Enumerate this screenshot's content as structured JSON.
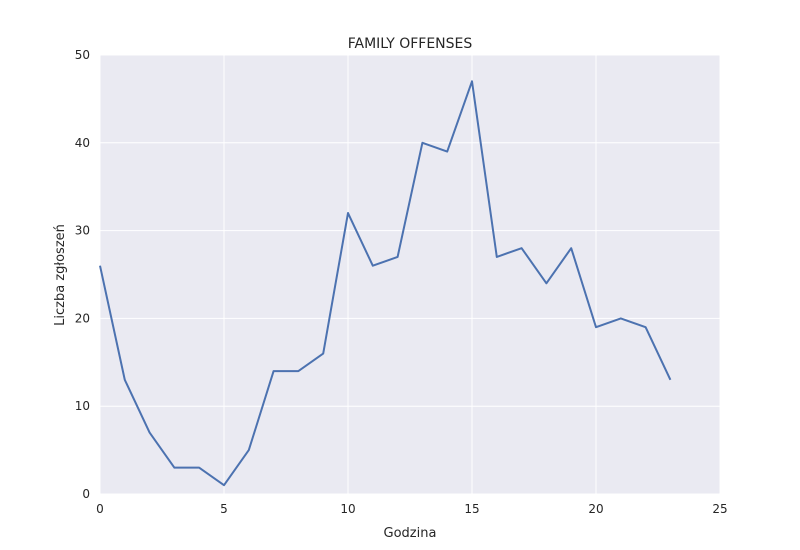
{
  "chart_data": {
    "type": "line",
    "title": "FAMILY OFFENSES",
    "xlabel": "Godzina",
    "ylabel": "Liczba zgłoszeń",
    "xlim": [
      0,
      25
    ],
    "ylim": [
      0,
      50
    ],
    "xticks": [
      0,
      5,
      10,
      15,
      20,
      25
    ],
    "yticks": [
      0,
      10,
      20,
      30,
      40,
      50
    ],
    "grid": true,
    "series": [
      {
        "x": [
          0,
          1,
          2,
          3,
          4,
          5,
          6,
          7,
          8,
          9,
          10,
          11,
          12,
          13,
          14,
          15,
          16,
          17,
          18,
          19,
          20,
          21,
          22,
          23
        ],
        "y": [
          26,
          13,
          7,
          3,
          3,
          1,
          5,
          14,
          14,
          16,
          32,
          26,
          27,
          40,
          39,
          47,
          27,
          28,
          24,
          28,
          19,
          20,
          19,
          13
        ]
      }
    ]
  },
  "colors": {
    "background": "#eaeaf2",
    "grid": "#ffffff",
    "line": "#4c72b0"
  }
}
